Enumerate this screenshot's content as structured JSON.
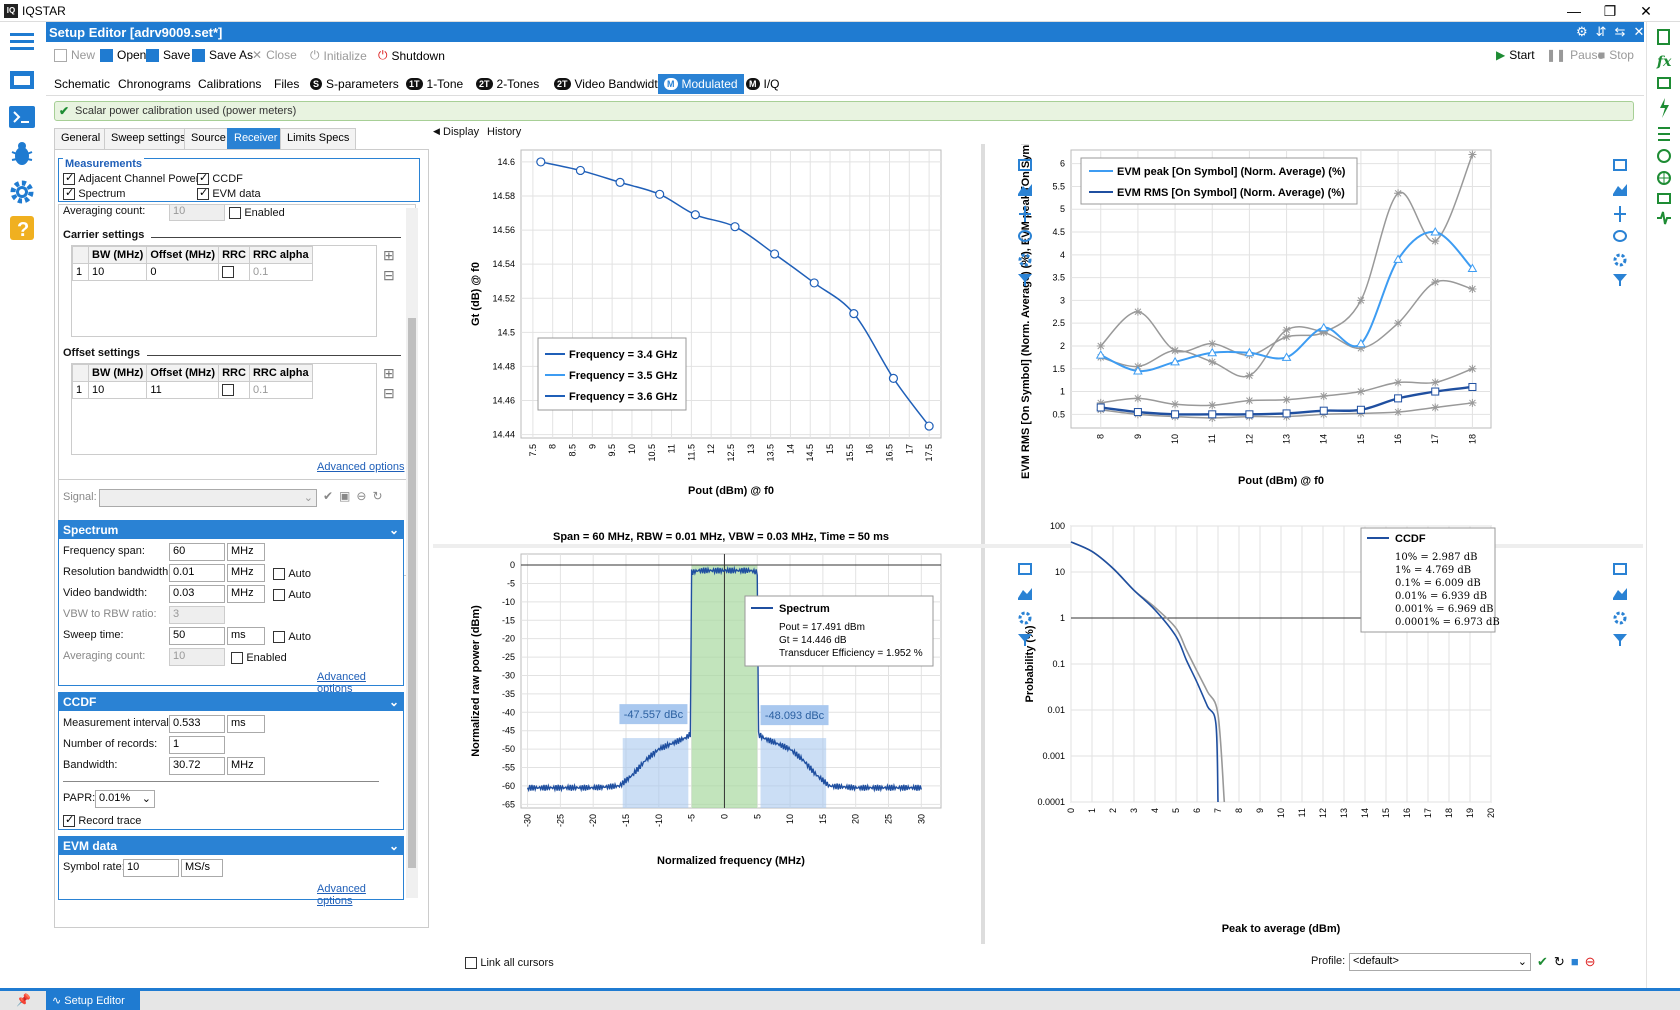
{
  "app": {
    "title": "IQSTAR",
    "logo": "IQ"
  },
  "window": {
    "minimize": "—",
    "restore": "❐",
    "close": "✕"
  },
  "editor": {
    "title": "Setup Editor [adrv9009.set*]"
  },
  "toolbar": {
    "new": "New",
    "open": "Open",
    "save": "Save",
    "save_as": "Save As",
    "close": "Close",
    "initialize": "Initialize",
    "shutdown": "Shutdown",
    "start": "Start",
    "pause": "Pause",
    "stop": "Stop"
  },
  "tabs": [
    {
      "label": "Schematic"
    },
    {
      "label": "Chronograms"
    },
    {
      "label": "Calibrations"
    },
    {
      "label": "Files"
    },
    {
      "chip": "S",
      "label": "S-parameters"
    },
    {
      "chip": "1T",
      "label": "1-Tone"
    },
    {
      "chip": "2T",
      "label": "2-Tones"
    },
    {
      "chip": "2T",
      "label": "Video Bandwidth"
    },
    {
      "chip": "M",
      "label": "Modulated"
    },
    {
      "chip": "M",
      "label": "I/Q"
    }
  ],
  "notice": "Scalar power calibration used (power meters)",
  "panel_tabs": [
    "General",
    "Sweep settings",
    "Source",
    "Receiver",
    "Limits Specs"
  ],
  "measurements": {
    "title": "Measurements",
    "acp": "Adjacent Channel Power",
    "ccdf": "CCDF",
    "spectrum": "Spectrum",
    "evm": "EVM data"
  },
  "averaging_top": {
    "label": "Averaging count:",
    "value": "10",
    "enabled": "Enabled"
  },
  "carrier": {
    "title": "Carrier settings",
    "headers": [
      "BW (MHz)",
      "Offset (MHz)",
      "RRC",
      "RRC alpha"
    ],
    "rows": [
      {
        "idx": "1",
        "bw": "10",
        "offset": "0",
        "alpha": "0.1"
      }
    ]
  },
  "offset": {
    "title": "Offset settings",
    "headers": [
      "BW (MHz)",
      "Offset (MHz)",
      "RRC",
      "RRC alpha"
    ],
    "rows": [
      {
        "idx": "1",
        "bw": "10",
        "offset": "11",
        "alpha": "0.1"
      }
    ]
  },
  "advanced": "Advanced options",
  "signal_label": "Signal:",
  "spectrum": {
    "title": "Spectrum",
    "span_label": "Frequency span:",
    "span": "60",
    "span_unit": "MHz",
    "rbw_label": "Resolution bandwidth:",
    "rbw": "0.01",
    "rbw_unit": "MHz",
    "vbw_label": "Video bandwidth:",
    "vbw": "0.03",
    "vbw_unit": "MHz",
    "ratio_label": "VBW to RBW ratio:",
    "ratio": "3",
    "sweep_label": "Sweep time:",
    "sweep": "50",
    "sweep_unit": "ms",
    "avg_label": "Averaging count:",
    "avg": "10",
    "enabled": "Enabled",
    "auto": "Auto"
  },
  "ccdf": {
    "title": "CCDF",
    "interval_label": "Measurement interval:",
    "interval": "0.533",
    "interval_unit": "ms",
    "records_label": "Number of records:",
    "records": "1",
    "bw_label": "Bandwidth:",
    "bw": "30.72",
    "bw_unit": "MHz",
    "papr_label": "PAPR:",
    "papr": "0.01%",
    "record_trace": "Record trace"
  },
  "evm": {
    "title": "EVM data",
    "rate_label": "Symbol rate:",
    "rate": "10",
    "rate_unit": "MS/s"
  },
  "display_tabs": [
    "Display",
    "History"
  ],
  "chart_data": [
    {
      "type": "line",
      "xlabel": "Pout (dBm) @ f0",
      "ylabel": "Gt (dB) @ f0",
      "xlim": [
        7.2,
        17.8
      ],
      "ylim": [
        14.438,
        14.607
      ],
      "xticks": [
        "7.5",
        "8",
        "8.5",
        "9",
        "9.5",
        "10",
        "10.5",
        "11",
        "11.5",
        "12",
        "12.5",
        "13",
        "13.5",
        "14",
        "14.5",
        "15",
        "15.5",
        "16",
        "16.5",
        "17",
        "17.5"
      ],
      "yticks": [
        "14.6",
        "14.58",
        "14.56",
        "14.54",
        "14.52",
        "14.5",
        "14.48",
        "14.46",
        "14.44"
      ],
      "legend": [
        "Frequency = 3.4 GHz",
        "Frequency = 3.5 GHz",
        "Frequency = 3.6 GHz"
      ],
      "series": [
        {
          "name": "Frequency = 3.4 GHz",
          "x": [
            7.7,
            8.7,
            9.7,
            10.7,
            11.6,
            12.6,
            13.6,
            14.6,
            15.6,
            16.6,
            17.5
          ],
          "y": [
            14.6,
            14.595,
            14.588,
            14.581,
            14.569,
            14.562,
            14.546,
            14.529,
            14.511,
            14.473,
            14.445
          ]
        }
      ]
    },
    {
      "type": "line",
      "xlabel": "Pout (dBm) @ f0",
      "ylabel": "EVM RMS [On Symbol] (Norm. Average) (%), EVM peak [On Symbol] (Nor",
      "xlim": [
        7.2,
        18.5
      ],
      "ylim": [
        0.2,
        6.3
      ],
      "xticks": [
        "8",
        "9",
        "10",
        "11",
        "12",
        "13",
        "14",
        "15",
        "16",
        "17",
        "18"
      ],
      "yticks": [
        "6",
        "5.5",
        "5",
        "4.5",
        "4",
        "3.5",
        "3",
        "2.5",
        "2",
        "1.5",
        "1",
        "0.5"
      ],
      "legend": [
        "EVM peak [On Symbol] (Norm. Average) (%)",
        "EVM RMS [On Symbol] (Norm. Average) (%)"
      ],
      "series": [
        {
          "name": "EVM peak [On Symbol] (Norm. Average) (%)",
          "x": [
            8,
            9,
            10,
            11,
            12,
            13,
            14,
            15,
            16,
            17,
            18
          ],
          "y": [
            1.8,
            1.45,
            1.65,
            1.85,
            1.85,
            1.75,
            2.4,
            2.05,
            3.9,
            4.5,
            3.7
          ]
        },
        {
          "name": "EVM RMS [On Symbol] (Norm. Average) (%)",
          "x": [
            8,
            9,
            10,
            11,
            12,
            13,
            14,
            15,
            16,
            17,
            18
          ],
          "y": [
            0.65,
            0.55,
            0.5,
            0.5,
            0.5,
            0.52,
            0.58,
            0.6,
            0.85,
            1.0,
            1.1
          ]
        },
        {
          "x": [
            8,
            9,
            10,
            11,
            12,
            13,
            14,
            15,
            16,
            17,
            18
          ],
          "y": [
            2.0,
            2.75,
            1.9,
            2.05,
            1.8,
            2.2,
            2.3,
            3.0,
            5.35,
            4.3,
            6.2
          ]
        },
        {
          "x": [
            8,
            9,
            10,
            11,
            12,
            13,
            14,
            15,
            16,
            17,
            18
          ],
          "y": [
            1.75,
            1.55,
            1.9,
            1.65,
            1.35,
            2.35,
            2.3,
            1.95,
            2.5,
            3.4,
            3.25
          ]
        },
        {
          "x": [
            8,
            9,
            10,
            11,
            12,
            13,
            14,
            15,
            16,
            17,
            18
          ],
          "y": [
            0.75,
            0.85,
            0.72,
            0.7,
            0.8,
            0.82,
            0.9,
            1.0,
            1.2,
            1.2,
            1.5
          ]
        },
        {
          "x": [
            8,
            9,
            10,
            11,
            12,
            13,
            14,
            15,
            16,
            17,
            18
          ],
          "y": [
            0.6,
            0.5,
            0.45,
            0.42,
            0.45,
            0.45,
            0.5,
            0.52,
            0.55,
            0.65,
            0.75
          ]
        }
      ]
    },
    {
      "type": "line",
      "title": "Span = 60 MHz, RBW = 0.01 MHz, VBW = 0.03 MHz, Time = 50 ms",
      "xlabel": "Normalized frequency (MHz)",
      "ylabel": "Normalized raw power (dBm)",
      "xlim": [
        -31,
        33
      ],
      "ylim": [
        -66,
        3
      ],
      "xticks": [
        "-30",
        "-25",
        "-20",
        "-15",
        "-10",
        "-5",
        "0",
        "5",
        "10",
        "15",
        "20",
        "25",
        "30"
      ],
      "yticks": [
        "0",
        "-5",
        "-10",
        "-15",
        "-20",
        "-25",
        "-30",
        "-35",
        "-40",
        "-45",
        "-50",
        "-55",
        "-60",
        "-65"
      ],
      "annotations": [
        "-47.557 dBc",
        "-48.093 dBc"
      ],
      "legend_title": "Spectrum",
      "legend_lines": [
        "Pout = 17.491 dBm",
        "Gt = 14.446 dB",
        "Transducer Efficiency = 1.952 %"
      ],
      "series": [
        {
          "name": "Spectrum",
          "x": [
            -30,
            -20,
            -16,
            -14,
            -12,
            -10,
            -8,
            -6,
            -5.2,
            -5,
            -4,
            0,
            4,
            5,
            5.2,
            6,
            8,
            10,
            12,
            14,
            16,
            20,
            30
          ],
          "y": [
            -60.5,
            -60.5,
            -60,
            -57,
            -53,
            -50,
            -48.5,
            -47,
            -46,
            -2,
            -1.5,
            -1.5,
            -1.5,
            -2,
            -46,
            -47,
            -48.5,
            -50,
            -53,
            -57,
            -60,
            -60.5,
            -60.5
          ]
        }
      ]
    },
    {
      "type": "line",
      "xlabel": "Peak to average (dBm)",
      "ylabel": "Probability (%)",
      "xlim": [
        0,
        20
      ],
      "yscale": "log",
      "xticks": [
        "0",
        "1",
        "2",
        "3",
        "4",
        "5",
        "6",
        "7",
        "8",
        "9",
        "10",
        "11",
        "12",
        "13",
        "14",
        "15",
        "16",
        "17",
        "18",
        "19",
        "20"
      ],
      "yticks": [
        "100",
        "10",
        "1",
        "0.1",
        "0.01",
        "0.001",
        "0.0001"
      ],
      "legend_title": "CCDF",
      "legend_lines": [
        "10% = 2.987 dB",
        "1% = 4.769 dB",
        "0.1% = 6.009 dB",
        "0.01% = 6.939 dB",
        "0.001% = 6.969 dB",
        "0.0001% = 6.973 dB"
      ],
      "series": [
        {
          "name": "CCDF",
          "x": [
            0,
            1,
            2,
            3,
            4,
            5,
            5.5,
            6,
            6.5,
            6.9,
            7.0
          ],
          "y": [
            45,
            28,
            12,
            4,
            1.5,
            0.4,
            0.12,
            0.04,
            0.012,
            0.005,
            0.0001
          ]
        },
        {
          "x": [
            0,
            1,
            2,
            3,
            4,
            5,
            5.5,
            6,
            6.5,
            7.0,
            7.3
          ],
          "y": [
            45,
            28,
            12,
            4,
            1.7,
            0.6,
            0.2,
            0.07,
            0.025,
            0.008,
            0.0001
          ]
        }
      ]
    }
  ],
  "bottom": {
    "link_cursors": "Link all cursors",
    "profile_label": "Profile:",
    "profile": "<default>"
  },
  "footer": {
    "setup_editor": "Setup Editor"
  }
}
